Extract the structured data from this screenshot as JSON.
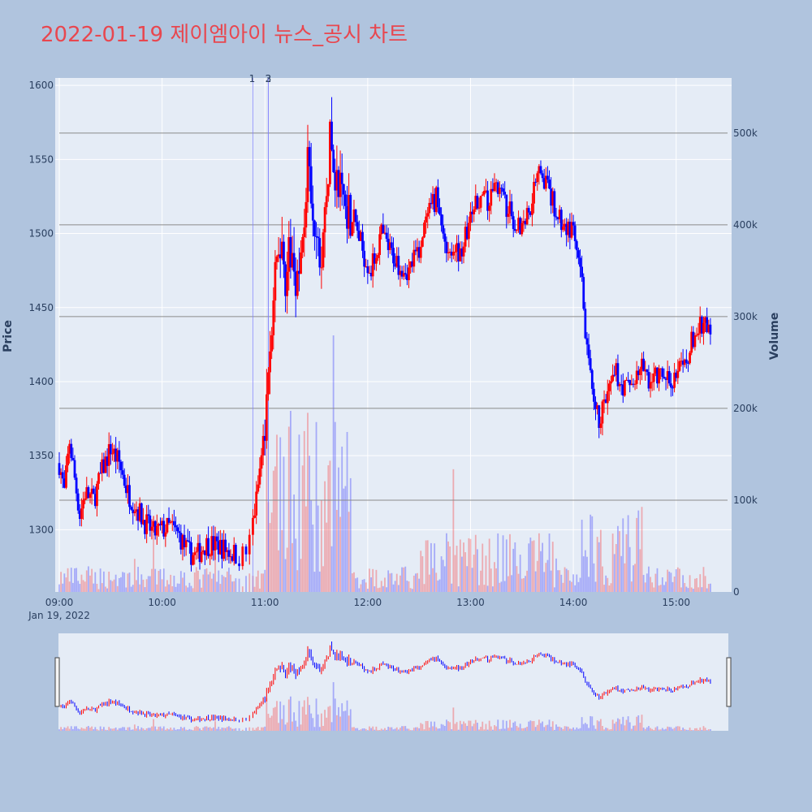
{
  "title": "2022-01-19 제이엠아이 뉴스_공시 차트",
  "chart_data": {
    "type": "candlestick",
    "title": "2022-01-19 제이엠아이 뉴스_공시 차트",
    "date_label": "Jan 19, 2022",
    "x_range": [
      "09:00",
      "15:30"
    ],
    "x_ticks": [
      "09:00",
      "10:00",
      "11:00",
      "12:00",
      "13:00",
      "14:00",
      "15:00"
    ],
    "ylabel": "Price",
    "ylim": [
      1258,
      1605
    ],
    "y_ticks": [
      1300,
      1350,
      1400,
      1450,
      1500,
      1550,
      1600
    ],
    "y2label": "Volume",
    "y2lim": [
      0,
      560000
    ],
    "y2_ticks": [
      0,
      100000,
      200000,
      300000,
      400000,
      500000
    ],
    "y2_tick_labels": [
      "0",
      "100k",
      "200k",
      "300k",
      "400k",
      "500k"
    ],
    "hlines_volume": [
      100000,
      200000,
      300000,
      400000,
      500000
    ],
    "news_markers": [
      {
        "label": "1",
        "time": "10:53"
      },
      {
        "label": "2",
        "time": "11:02"
      },
      {
        "label": "3",
        "time": "11:02"
      }
    ],
    "up_color": "#ff0000",
    "down_color": "#0000ff",
    "anchors": [
      [
        "09:00",
        1345
      ],
      [
        "09:03",
        1325
      ],
      [
        "09:06",
        1360
      ],
      [
        "09:09",
        1335
      ],
      [
        "09:12",
        1310
      ],
      [
        "09:15",
        1325
      ],
      [
        "09:20",
        1320
      ],
      [
        "09:25",
        1340
      ],
      [
        "09:30",
        1355
      ],
      [
        "09:35",
        1345
      ],
      [
        "09:40",
        1325
      ],
      [
        "09:45",
        1315
      ],
      [
        "09:50",
        1305
      ],
      [
        "09:55",
        1298
      ],
      [
        "10:00",
        1300
      ],
      [
        "10:05",
        1302
      ],
      [
        "10:10",
        1296
      ],
      [
        "10:15",
        1285
      ],
      [
        "10:20",
        1282
      ],
      [
        "10:25",
        1290
      ],
      [
        "10:30",
        1290
      ],
      [
        "10:35",
        1288
      ],
      [
        "10:40",
        1285
      ],
      [
        "10:45",
        1282
      ],
      [
        "10:50",
        1285
      ],
      [
        "10:55",
        1320
      ],
      [
        "11:00",
        1370
      ],
      [
        "11:05",
        1450
      ],
      [
        "11:08",
        1495
      ],
      [
        "11:12",
        1475
      ],
      [
        "11:16",
        1485
      ],
      [
        "11:20",
        1465
      ],
      [
        "11:25",
        1545
      ],
      [
        "11:28",
        1500
      ],
      [
        "11:33",
        1480
      ],
      [
        "11:38",
        1560
      ],
      [
        "11:42",
        1535
      ],
      [
        "11:48",
        1520
      ],
      [
        "11:52",
        1510
      ],
      [
        "11:58",
        1485
      ],
      [
        "12:02",
        1475
      ],
      [
        "12:08",
        1500
      ],
      [
        "12:12",
        1490
      ],
      [
        "12:18",
        1480
      ],
      [
        "12:24",
        1475
      ],
      [
        "12:30",
        1490
      ],
      [
        "12:35",
        1510
      ],
      [
        "12:40",
        1525
      ],
      [
        "12:45",
        1495
      ],
      [
        "12:50",
        1485
      ],
      [
        "12:55",
        1490
      ],
      [
        "13:00",
        1510
      ],
      [
        "13:05",
        1525
      ],
      [
        "13:10",
        1520
      ],
      [
        "13:15",
        1535
      ],
      [
        "13:20",
        1520
      ],
      [
        "13:25",
        1510
      ],
      [
        "13:30",
        1505
      ],
      [
        "13:35",
        1520
      ],
      [
        "13:40",
        1550
      ],
      [
        "13:45",
        1530
      ],
      [
        "13:50",
        1515
      ],
      [
        "13:55",
        1505
      ],
      [
        "14:00",
        1500
      ],
      [
        "14:05",
        1465
      ],
      [
        "14:08",
        1420
      ],
      [
        "14:12",
        1380
      ],
      [
        "14:15",
        1375
      ],
      [
        "14:20",
        1390
      ],
      [
        "14:25",
        1405
      ],
      [
        "14:30",
        1395
      ],
      [
        "14:35",
        1400
      ],
      [
        "14:40",
        1410
      ],
      [
        "14:45",
        1400
      ],
      [
        "14:50",
        1405
      ],
      [
        "14:55",
        1400
      ],
      [
        "15:00",
        1405
      ],
      [
        "15:05",
        1410
      ],
      [
        "15:10",
        1430
      ],
      [
        "15:15",
        1438
      ],
      [
        "15:20",
        1435
      ]
    ]
  }
}
